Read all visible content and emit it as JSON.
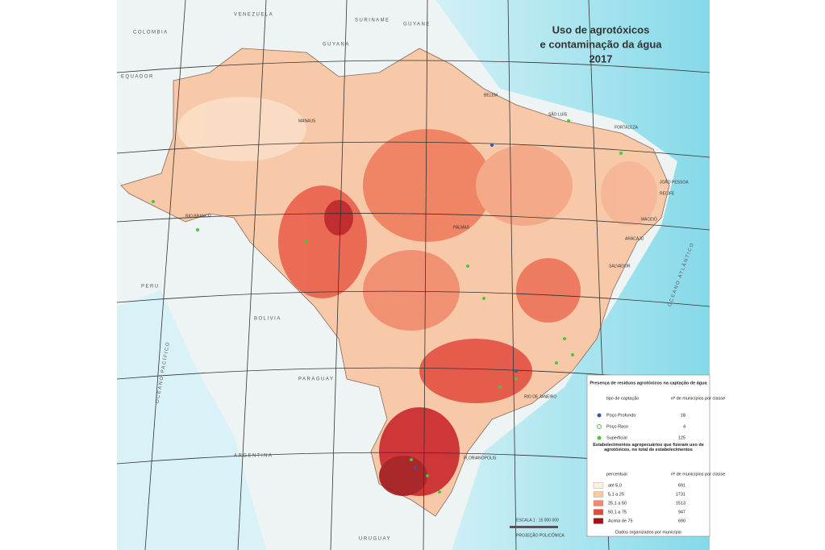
{
  "header": {
    "title_lines": [
      "Uso de agrotóxicos",
      "e contaminação da água",
      "2017"
    ]
  },
  "map_labels": {
    "countries": [
      "VENEZUELA",
      "COLOMBIA",
      "GUYANA",
      "SURINAME",
      "GUYANE",
      "EQUADOR",
      "PERU",
      "BOLIVIA",
      "PARAGUAY",
      "ARGENTINA",
      "URUGUAY"
    ],
    "oceans": [
      "OCEANO ATLÂNTICO",
      "OCEANO PACÍFICO"
    ],
    "cities": [
      "MANAUS",
      "BELÉM",
      "SÃO LUÍS",
      "FORTALEZA",
      "PALMAS",
      "JOÃO PESSOA",
      "RECIFE",
      "MACEIÓ",
      "ARACAJU",
      "SALVADOR",
      "RIO BRANCO",
      "RIO DE JANEIRO",
      "FLORIANÓPOLIS"
    ]
  },
  "legend": {
    "section1_title": "Presença de resíduos agrotóxicos na captação de água",
    "section1_headers": [
      "tipo de captação",
      "nº de municípios por classe"
    ],
    "section1_rows": [
      [
        "Poço Profundo",
        18
      ],
      [
        "Poço Raso",
        4
      ],
      [
        "Superficial",
        125
      ]
    ],
    "section2_title": "Estabelecimentos agropecuários que fizeram uso de agrotóxicos, no total de estabelecimentos",
    "section2_headers": [
      "percentual",
      "nº de municípios por classe"
    ],
    "section2_rows": [
      [
        "até 5,0",
        691
      ],
      [
        "5,1 a 25",
        1731
      ],
      [
        "25,1 a 50",
        1513
      ],
      [
        "50,1 a 75",
        947
      ],
      [
        "Acima de 75",
        690
      ]
    ],
    "footer": "Dados organizados por município"
  },
  "scale": {
    "text": "ESCALA 1 : 15 000 000",
    "projection": "PROJEÇÃO POLICÔNICA"
  }
}
